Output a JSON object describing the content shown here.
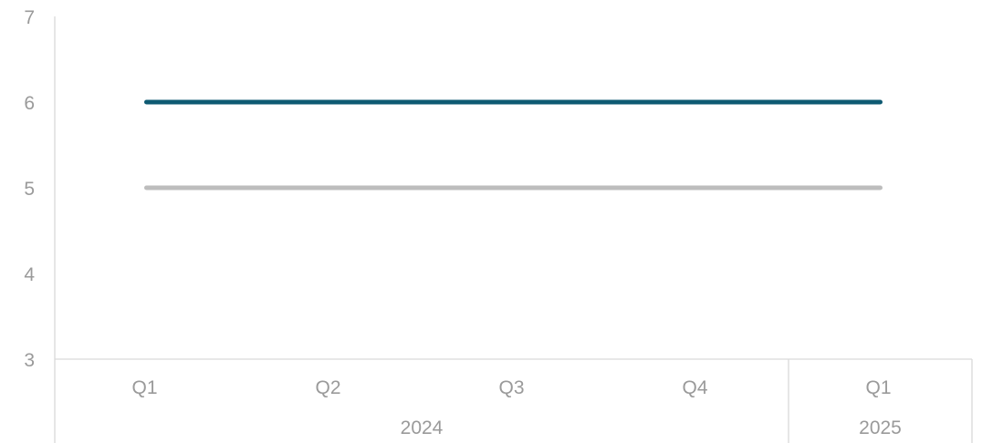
{
  "chart_data": {
    "type": "line",
    "title": "",
    "xlabel": "",
    "ylabel": "",
    "ylim": [
      3,
      7
    ],
    "yticks": [
      3,
      4,
      5,
      6,
      7
    ],
    "grid": false,
    "legend": "none",
    "categories": [
      "Q1",
      "Q2",
      "Q3",
      "Q4",
      "Q1"
    ],
    "category_groups": [
      {
        "label": "2024",
        "count": 4
      },
      {
        "label": "2025",
        "count": 1
      }
    ],
    "series": [
      {
        "values": [
          6,
          6,
          6,
          6,
          6
        ],
        "color": "#0e5a72"
      },
      {
        "values": [
          5,
          5,
          5,
          5,
          5
        ],
        "color": "#bdbdbd"
      }
    ]
  }
}
